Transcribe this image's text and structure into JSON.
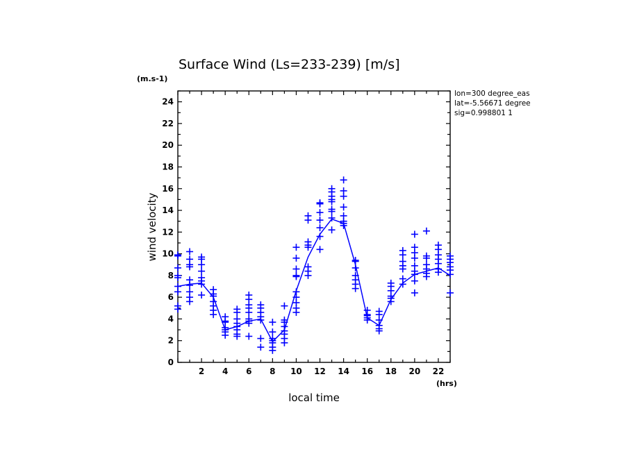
{
  "chart_data": {
    "type": "line",
    "title": "Surface Wind  (Ls=233-239) [m/s]",
    "xlabel": "local time",
    "ylabel": "wind velocity",
    "x_unit": "(hrs)",
    "y_unit": "(m.s-1)",
    "xlim": [
      0,
      23
    ],
    "ylim": [
      0,
      25
    ],
    "x_tick_labels": [
      "2",
      "4",
      "6",
      "8",
      "10",
      "12",
      "14",
      "16",
      "18",
      "20",
      "22"
    ],
    "y_tick_labels": [
      "0",
      "2",
      "4",
      "6",
      "8",
      "10",
      "12",
      "14",
      "16",
      "18",
      "20",
      "22",
      "24"
    ],
    "grid": false,
    "info": [
      "lon=300 degree_eas",
      "lat=-5.56671 degree",
      "sig=0.998801 1"
    ],
    "colors": {
      "series": "#0000ff",
      "axes": "#000000",
      "background": "#ffffff"
    },
    "series": [
      {
        "type": "line",
        "x": [
          0,
          1,
          2,
          3,
          4,
          5,
          6,
          7,
          8,
          9,
          10,
          11,
          12,
          13,
          14,
          15,
          16,
          17,
          18,
          19,
          20,
          21,
          22,
          23
        ],
        "y": [
          7.0,
          7.2,
          7.3,
          6.0,
          3.0,
          3.3,
          3.8,
          4.0,
          1.9,
          3.0,
          6.6,
          9.7,
          11.8,
          13.2,
          12.8,
          9.0,
          4.1,
          3.4,
          5.8,
          7.3,
          8.1,
          8.4,
          8.7,
          8.0
        ]
      },
      {
        "type": "scatter",
        "marker": "+",
        "points": [
          [
            0,
            9.9
          ],
          [
            0,
            9.8
          ],
          [
            0,
            8.7
          ],
          [
            0,
            8.0
          ],
          [
            0,
            7.8
          ],
          [
            0,
            7.0
          ],
          [
            0,
            6.5
          ],
          [
            0,
            5.2
          ],
          [
            0,
            4.9
          ],
          [
            1,
            10.2
          ],
          [
            1,
            9.5
          ],
          [
            1,
            9.0
          ],
          [
            1,
            8.8
          ],
          [
            1,
            7.6
          ],
          [
            1,
            7.1
          ],
          [
            1,
            6.5
          ],
          [
            1,
            6.0
          ],
          [
            1,
            5.6
          ],
          [
            2,
            9.7
          ],
          [
            2,
            9.5
          ],
          [
            2,
            9.0
          ],
          [
            2,
            8.4
          ],
          [
            2,
            7.8
          ],
          [
            2,
            7.5
          ],
          [
            2,
            7.2
          ],
          [
            2,
            6.2
          ],
          [
            3,
            6.7
          ],
          [
            3,
            6.3
          ],
          [
            3,
            6.1
          ],
          [
            3,
            5.6
          ],
          [
            3,
            5.2
          ],
          [
            3,
            4.8
          ],
          [
            3,
            4.4
          ],
          [
            4,
            4.2
          ],
          [
            4,
            3.8
          ],
          [
            4,
            3.7
          ],
          [
            4,
            3.2
          ],
          [
            4,
            3.0
          ],
          [
            4,
            2.8
          ],
          [
            4,
            2.5
          ],
          [
            5,
            4.9
          ],
          [
            5,
            4.6
          ],
          [
            5,
            4.0
          ],
          [
            5,
            3.6
          ],
          [
            5,
            3.3
          ],
          [
            5,
            3.0
          ],
          [
            5,
            2.6
          ],
          [
            5,
            2.4
          ],
          [
            6,
            6.2
          ],
          [
            6,
            5.8
          ],
          [
            6,
            5.3
          ],
          [
            6,
            5.0
          ],
          [
            6,
            4.6
          ],
          [
            6,
            4.0
          ],
          [
            6,
            3.8
          ],
          [
            6,
            3.6
          ],
          [
            6,
            2.4
          ],
          [
            7,
            5.3
          ],
          [
            7,
            5.0
          ],
          [
            7,
            4.6
          ],
          [
            7,
            4.2
          ],
          [
            7,
            3.9
          ],
          [
            7,
            2.2
          ],
          [
            7,
            1.4
          ],
          [
            8,
            3.7
          ],
          [
            8,
            2.8
          ],
          [
            8,
            2.2
          ],
          [
            8,
            2.0
          ],
          [
            8,
            1.8
          ],
          [
            8,
            1.4
          ],
          [
            8,
            1.1
          ],
          [
            9,
            5.2
          ],
          [
            9,
            3.9
          ],
          [
            9,
            3.7
          ],
          [
            9,
            3.3
          ],
          [
            9,
            2.9
          ],
          [
            9,
            2.6
          ],
          [
            9,
            2.2
          ],
          [
            9,
            1.8
          ],
          [
            10,
            10.6
          ],
          [
            10,
            9.6
          ],
          [
            10,
            8.6
          ],
          [
            10,
            8.0
          ],
          [
            10,
            7.9
          ],
          [
            10,
            6.5
          ],
          [
            10,
            6.0
          ],
          [
            10,
            5.5
          ],
          [
            10,
            5.0
          ],
          [
            10,
            4.6
          ],
          [
            11,
            13.5
          ],
          [
            11,
            13.1
          ],
          [
            11,
            11.1
          ],
          [
            11,
            10.8
          ],
          [
            11,
            10.6
          ],
          [
            11,
            8.8
          ],
          [
            11,
            8.4
          ],
          [
            11,
            8.0
          ],
          [
            12,
            14.7
          ],
          [
            12,
            14.6
          ],
          [
            12,
            13.8
          ],
          [
            12,
            13.1
          ],
          [
            12,
            12.4
          ],
          [
            12,
            11.6
          ],
          [
            12,
            10.4
          ],
          [
            13,
            16.0
          ],
          [
            13,
            15.7
          ],
          [
            13,
            15.3
          ],
          [
            13,
            15.0
          ],
          [
            13,
            14.8
          ],
          [
            13,
            14.1
          ],
          [
            13,
            13.9
          ],
          [
            13,
            13.3
          ],
          [
            13,
            12.2
          ],
          [
            14,
            16.8
          ],
          [
            14,
            15.8
          ],
          [
            14,
            15.3
          ],
          [
            14,
            14.3
          ],
          [
            14,
            13.5
          ],
          [
            14,
            13.0
          ],
          [
            14,
            12.8
          ],
          [
            14,
            12.6
          ],
          [
            15,
            9.4
          ],
          [
            15,
            9.3
          ],
          [
            15,
            8.7
          ],
          [
            15,
            8.0
          ],
          [
            15,
            7.6
          ],
          [
            15,
            7.2
          ],
          [
            15,
            6.8
          ],
          [
            16,
            4.8
          ],
          [
            16,
            4.4
          ],
          [
            16,
            4.3
          ],
          [
            16,
            4.1
          ],
          [
            16,
            3.9
          ],
          [
            17,
            4.7
          ],
          [
            17,
            4.4
          ],
          [
            17,
            3.9
          ],
          [
            17,
            3.4
          ],
          [
            17,
            3.1
          ],
          [
            17,
            2.9
          ],
          [
            18,
            7.3
          ],
          [
            18,
            7.0
          ],
          [
            18,
            6.6
          ],
          [
            18,
            6.1
          ],
          [
            18,
            5.9
          ],
          [
            18,
            5.6
          ],
          [
            19,
            10.3
          ],
          [
            19,
            9.9
          ],
          [
            19,
            9.3
          ],
          [
            19,
            8.9
          ],
          [
            19,
            8.6
          ],
          [
            19,
            7.7
          ],
          [
            19,
            7.2
          ],
          [
            20,
            11.8
          ],
          [
            20,
            10.6
          ],
          [
            20,
            10.1
          ],
          [
            20,
            9.6
          ],
          [
            20,
            8.9
          ],
          [
            20,
            8.4
          ],
          [
            20,
            8.1
          ],
          [
            20,
            7.5
          ],
          [
            20,
            6.4
          ],
          [
            21,
            12.1
          ],
          [
            21,
            9.8
          ],
          [
            21,
            9.6
          ],
          [
            21,
            9.0
          ],
          [
            21,
            8.6
          ],
          [
            21,
            8.2
          ],
          [
            21,
            7.9
          ],
          [
            22,
            10.8
          ],
          [
            22,
            10.4
          ],
          [
            22,
            9.9
          ],
          [
            22,
            9.5
          ],
          [
            22,
            9.1
          ],
          [
            22,
            8.6
          ],
          [
            22,
            8.3
          ],
          [
            23,
            9.8
          ],
          [
            23,
            9.5
          ],
          [
            23,
            9.2
          ],
          [
            23,
            8.8
          ],
          [
            23,
            8.5
          ],
          [
            23,
            8.1
          ],
          [
            23,
            6.4
          ]
        ]
      }
    ]
  }
}
